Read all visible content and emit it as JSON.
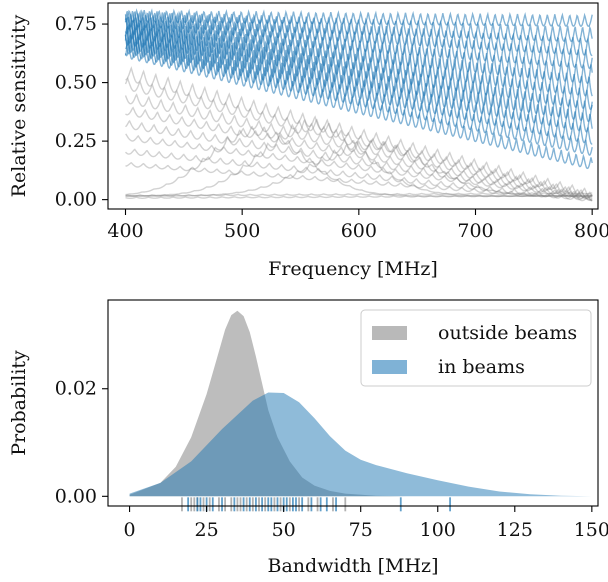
{
  "colors": {
    "in_beams": "#1f77b4",
    "outside_beams": "#7f7f7f",
    "in_beams_fill": "#7fb2d6",
    "outside_beams_fill": "#b9b9b9",
    "axis": "#000000"
  },
  "chart_data": [
    {
      "type": "line",
      "xlabel": "Frequency [MHz]",
      "ylabel": "Relative sensitivity",
      "xlim": [
        385,
        805
      ],
      "ylim": [
        -0.04,
        0.84
      ],
      "xticks": [
        400,
        500,
        600,
        700,
        800
      ],
      "xtick_labels": [
        "400",
        "500",
        "600",
        "700",
        "800"
      ],
      "yticks": [
        0.0,
        0.25,
        0.5,
        0.75
      ],
      "ytick_labels": [
        "0.00",
        "0.25",
        "0.50",
        "0.75"
      ],
      "grid": false,
      "x_range": [
        400,
        800
      ],
      "series": [
        {
          "group": "in_beams",
          "start": 0.81,
          "end": 0.79,
          "ripple": 0.05
        },
        {
          "group": "in_beams",
          "start": 0.81,
          "end": 0.74,
          "ripple": 0.07
        },
        {
          "group": "in_beams",
          "start": 0.81,
          "end": 0.69,
          "ripple": 0.08
        },
        {
          "group": "in_beams",
          "start": 0.8,
          "end": 0.64,
          "ripple": 0.09
        },
        {
          "group": "in_beams",
          "start": 0.79,
          "end": 0.58,
          "ripple": 0.1
        },
        {
          "group": "in_beams",
          "start": 0.78,
          "end": 0.53,
          "ripple": 0.11
        },
        {
          "group": "in_beams",
          "start": 0.77,
          "end": 0.47,
          "ripple": 0.11
        },
        {
          "group": "in_beams",
          "start": 0.76,
          "end": 0.42,
          "ripple": 0.12
        },
        {
          "group": "in_beams",
          "start": 0.75,
          "end": 0.37,
          "ripple": 0.12
        },
        {
          "group": "in_beams",
          "start": 0.73,
          "end": 0.31,
          "ripple": 0.11
        },
        {
          "group": "in_beams",
          "start": 0.71,
          "end": 0.25,
          "ripple": 0.1
        },
        {
          "group": "in_beams",
          "start": 0.69,
          "end": 0.18,
          "ripple": 0.09
        },
        {
          "group": "outside_beams",
          "start": 0.57,
          "end": 0.04,
          "ripple": 0.07
        },
        {
          "group": "outside_beams",
          "start": 0.52,
          "end": 0.03,
          "ripple": 0.06
        },
        {
          "group": "outside_beams",
          "start": 0.46,
          "end": 0.03,
          "ripple": 0.06
        },
        {
          "group": "outside_beams",
          "start": 0.4,
          "end": 0.02,
          "ripple": 0.05
        },
        {
          "group": "outside_beams",
          "start": 0.34,
          "end": 0.02,
          "ripple": 0.05
        },
        {
          "group": "outside_beams",
          "start": 0.28,
          "end": 0.02,
          "ripple": 0.04
        },
        {
          "group": "outside_beams",
          "start": 0.22,
          "end": 0.01,
          "ripple": 0.04
        },
        {
          "group": "outside_beams",
          "start": 0.16,
          "end": 0.01,
          "ripple": 0.03
        },
        {
          "group": "outside_beams",
          "start": 0.02,
          "end": 0.03,
          "ripple": 0.01
        },
        {
          "group": "outside_beams",
          "start": 0.01,
          "end": 0.02,
          "ripple": 0.01
        },
        {
          "group": "outside_beams",
          "peak": 0.33,
          "peak_at": 560,
          "width": 62,
          "ripple": 0.05
        },
        {
          "group": "outside_beams",
          "peak": 0.3,
          "peak_at": 512,
          "width": 58,
          "ripple": 0.04
        },
        {
          "group": "outside_beams",
          "peak": 0.24,
          "peak_at": 610,
          "width": 70,
          "ripple": 0.04
        }
      ]
    },
    {
      "type": "area",
      "xlabel": "Bandwidth [MHz]",
      "ylabel": "Probability",
      "xlim": [
        -7,
        152
      ],
      "ylim": [
        -0.0018,
        0.0365
      ],
      "xticks": [
        0,
        25,
        50,
        75,
        100,
        125,
        150
      ],
      "xtick_labels": [
        "0",
        "25",
        "50",
        "75",
        "100",
        "125",
        "150"
      ],
      "yticks": [
        0.0,
        0.02
      ],
      "ytick_labels": [
        "0.00",
        "0.02"
      ],
      "grid": false,
      "legend": {
        "position": "top-right",
        "entries": [
          "outside beams",
          "in beams"
        ]
      },
      "series": [
        {
          "name": "outside beams",
          "x": [
            0,
            10,
            15,
            20,
            25,
            28,
            31,
            33,
            35,
            37,
            39,
            41,
            43,
            45,
            48,
            52,
            56,
            60,
            65,
            70,
            80,
            90
          ],
          "y": [
            0.0003,
            0.0025,
            0.0055,
            0.011,
            0.019,
            0.025,
            0.031,
            0.0337,
            0.0345,
            0.0335,
            0.0305,
            0.026,
            0.021,
            0.016,
            0.011,
            0.0065,
            0.0035,
            0.002,
            0.001,
            0.0005,
            0.0001,
            0.0
          ]
        },
        {
          "name": "in beams",
          "x": [
            0,
            10,
            20,
            30,
            40,
            45,
            50,
            55,
            60,
            65,
            70,
            75,
            80,
            90,
            100,
            110,
            120,
            130,
            140,
            150
          ],
          "y": [
            0.0005,
            0.0025,
            0.0065,
            0.0125,
            0.0178,
            0.0193,
            0.0192,
            0.0175,
            0.0145,
            0.0112,
            0.0085,
            0.0068,
            0.0058,
            0.0043,
            0.003,
            0.0018,
            0.0009,
            0.0004,
            0.0001,
            0.0
          ]
        }
      ],
      "rug": {
        "outside beams": [
          17,
          20,
          21,
          22,
          24,
          26,
          29,
          31,
          33,
          35,
          36,
          38,
          40,
          42,
          44,
          47,
          49,
          52,
          55,
          58,
          61,
          66,
          70
        ],
        "in beams": [
          19,
          22,
          23,
          25,
          27,
          30,
          34,
          37,
          39,
          41,
          43,
          45,
          46,
          48,
          50,
          51,
          53,
          54,
          56,
          59,
          62,
          64,
          67,
          88,
          104
        ]
      }
    }
  ]
}
